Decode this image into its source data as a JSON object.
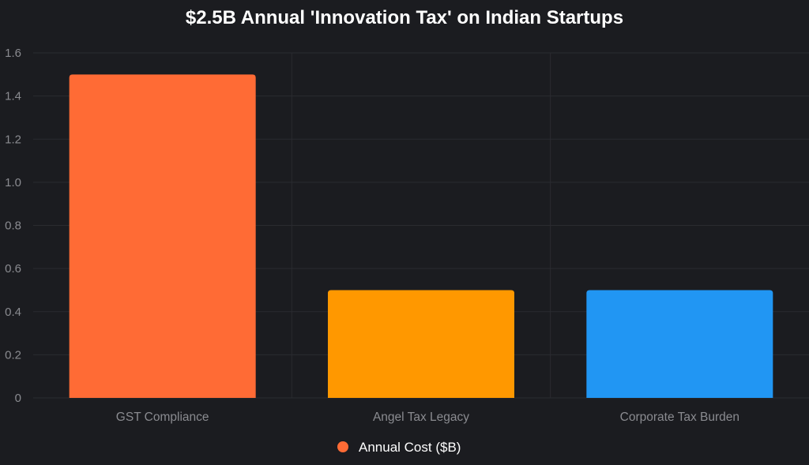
{
  "chart_data": {
    "type": "bar",
    "title": "$2.5B Annual 'Innovation Tax' on Indian Startups",
    "categories": [
      "GST Compliance",
      "Angel Tax Legacy",
      "Corporate Tax Burden"
    ],
    "series": [
      {
        "name": "Annual Cost ($B)",
        "values": [
          1.5,
          0.5,
          0.5
        ],
        "colors": [
          "#ff6b35",
          "#ff9800",
          "#2196f3"
        ]
      }
    ],
    "ylim": [
      0,
      1.6
    ],
    "yticks": [
      "0",
      "0.2",
      "0.4",
      "0.6",
      "0.8",
      "1.0",
      "1.2",
      "1.4",
      "1.6"
    ],
    "xlabel": "",
    "ylabel": "",
    "grid": true,
    "legend_position": "bottom-center",
    "legend_color": "#ff6b35"
  }
}
